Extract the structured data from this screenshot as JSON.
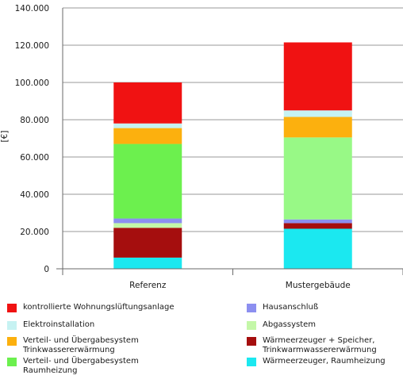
{
  "chart_data": {
    "type": "bar",
    "stacked": true,
    "categories": [
      "Referenz",
      "Mustergebäude"
    ],
    "ylabel": "[€]",
    "ylim": [
      0,
      140000
    ],
    "yticks": [
      0,
      20000,
      40000,
      60000,
      80000,
      100000,
      120000,
      140000
    ],
    "ytick_labels": [
      "0",
      "20.000",
      "40.000",
      "60.000",
      "80.000",
      "100.000",
      "120.000",
      "140.000"
    ],
    "grid": true,
    "legend_position": "bottom",
    "series": [
      {
        "name": "Wärmeerzeuger, Raumheizung",
        "color": "#1be8f0",
        "values": [
          6000,
          21500
        ]
      },
      {
        "name": "Wärmeerzeuger + Speicher,\nTrinkwarmwassererwärmung",
        "color": "#a50e0e",
        "values": [
          16000,
          3000
        ]
      },
      {
        "name": "Abgassystem",
        "color": "#c4f7a8",
        "values": [
          2500,
          0
        ]
      },
      {
        "name": "Hausanschluß",
        "color": "#8c8ff0",
        "values": [
          2500,
          2000
        ]
      },
      {
        "name": "Verteil- und Übergabesystem\nRaumheizung",
        "color": "#6cf04e",
        "values": [
          40000,
          0
        ]
      },
      {
        "name": "Abgassystem",
        "color": "#98f986",
        "values": [
          0,
          44000
        ]
      },
      {
        "name": "Verteil- und Übergabesystem\nTrinkwassererwärmung",
        "color": "#fcb00e",
        "values": [
          8500,
          11000
        ]
      },
      {
        "name": "Elektroinstallation",
        "color": "#c6f2f2",
        "values": [
          2500,
          3500
        ]
      },
      {
        "name": "kontrollierte Wohnungslüftungsanlage",
        "color": "#f01212",
        "values": [
          22000,
          36500
        ]
      }
    ],
    "legend": [
      {
        "label": "kontrollierte Wohnungslüftungsanlage",
        "color": "#f01212"
      },
      {
        "label": "Hausanschluß",
        "color": "#8c8ff0"
      },
      {
        "label": "Elektroinstallation",
        "color": "#c6f2f2"
      },
      {
        "label": "Abgassystem",
        "color": "#c4f7a8"
      },
      {
        "label": "Verteil- und Übergabesystem\nTrinkwassererwärmung",
        "color": "#fcb00e"
      },
      {
        "label": "Wärmeerzeuger + Speicher,\nTrinkwarmwassererwärmung",
        "color": "#a50e0e"
      },
      {
        "label": "Verteil- und Übergabesystem\nRaumheizung",
        "color": "#6cf04e"
      },
      {
        "label": "Wärmeerzeuger, Raumheizung",
        "color": "#1be8f0"
      }
    ]
  }
}
